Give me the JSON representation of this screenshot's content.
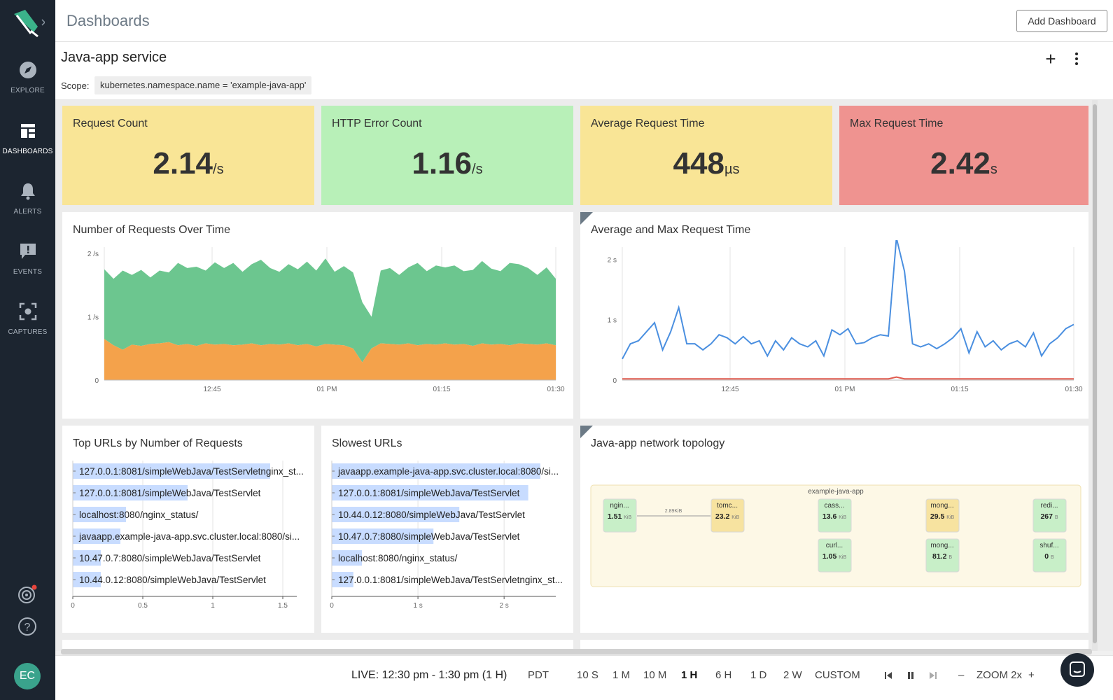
{
  "sidebar": {
    "items": [
      {
        "label": "EXPLORE",
        "icon": "compass-icon"
      },
      {
        "label": "DASHBOARDS",
        "icon": "dashboard-icon"
      },
      {
        "label": "ALERTS",
        "icon": "bell-icon"
      },
      {
        "label": "EVENTS",
        "icon": "speech-bubble-icon"
      },
      {
        "label": "CAPTURES",
        "icon": "capture-icon"
      }
    ],
    "avatar_initials": "EC"
  },
  "header": {
    "title": "Dashboards",
    "add_button": "Add Dashboard"
  },
  "dashboard": {
    "title": "Java-app service",
    "scope_label": "Scope:",
    "scope_value": "kubernetes.namespace.name = 'example-java-app'"
  },
  "kpis": [
    {
      "title": "Request Count",
      "value": "2.14",
      "unit": "/s",
      "color": "#f9e596"
    },
    {
      "title": "HTTP Error Count",
      "value": "1.16",
      "unit": "/s",
      "color": "#b8f0b8"
    },
    {
      "title": "Average Request Time",
      "value": "448",
      "unit": "µs",
      "color": "#f9e596"
    },
    {
      "title": "Max Request Time",
      "value": "2.42",
      "unit": "s",
      "color": "#ef9390"
    }
  ],
  "requests_chart": {
    "title": "Number of Requests Over Time",
    "chart_data": {
      "type": "area",
      "x_ticks": [
        "12:45",
        "01 PM",
        "01:15",
        "01:30"
      ],
      "y_ticks": [
        "0",
        "1 /s",
        "2 /s"
      ],
      "ylim": [
        0,
        2.1
      ],
      "series": [
        {
          "color": "#f4a24b",
          "values": [
            0.65,
            0.55,
            0.48,
            0.56,
            0.54,
            0.57,
            0.58,
            0.6,
            0.55,
            0.57,
            0.54,
            0.58,
            0.56,
            0.57,
            0.55,
            0.56,
            0.58,
            0.55,
            0.57,
            0.56,
            0.58,
            0.55,
            0.57,
            0.53,
            0.57,
            0.56,
            0.55,
            0.5,
            0.28,
            0.5,
            0.58,
            0.57,
            0.56,
            0.58,
            0.55,
            0.57,
            0.56,
            0.58,
            0.56,
            0.57,
            0.54,
            0.58,
            0.56,
            0.57,
            0.55,
            0.58,
            0.57,
            0.56,
            0.58,
            0.55
          ]
        },
        {
          "color": "#6cc68f",
          "values": [
            1.1,
            1.05,
            1.25,
            1.1,
            1.2,
            1.05,
            1.15,
            1.1,
            1.3,
            1.2,
            1.25,
            1.15,
            1.3,
            1.2,
            1.3,
            1.15,
            1.25,
            1.35,
            1.2,
            1.15,
            1.25,
            1.2,
            1.3,
            1.2,
            1.35,
            1.15,
            1.25,
            1.2,
            0.95,
            0.5,
            1.15,
            1.2,
            1.1,
            1.2,
            1.3,
            1.15,
            1.25,
            1.2,
            1.25,
            1.15,
            1.2,
            1.3,
            1.2,
            1.15,
            1.3,
            1.25,
            1.2,
            1.1,
            1.2,
            1.05
          ]
        }
      ]
    }
  },
  "time_chart": {
    "title": "Average and Max Request Time",
    "chart_data": {
      "type": "line",
      "x_ticks": [
        "12:45",
        "01 PM",
        "01:15",
        "01:30"
      ],
      "y_ticks": [
        "0",
        "1 s",
        "2 s"
      ],
      "ylim": [
        0,
        2.2
      ],
      "series": [
        {
          "color": "#4a8fe0",
          "values": [
            0.35,
            0.6,
            0.65,
            0.8,
            0.95,
            0.5,
            0.8,
            1.2,
            0.6,
            0.6,
            0.5,
            0.6,
            0.75,
            0.7,
            0.6,
            0.72,
            0.6,
            0.65,
            0.4,
            0.65,
            0.5,
            0.7,
            0.6,
            0.55,
            0.65,
            0.4,
            0.83,
            0.75,
            0.85,
            0.6,
            0.62,
            0.7,
            0.75,
            0.73,
            2.35,
            1.8,
            0.6,
            0.55,
            0.6,
            0.52,
            0.6,
            0.7,
            0.85,
            0.45,
            0.8,
            0.55,
            0.65,
            0.5,
            0.6,
            0.65,
            0.55,
            0.78,
            0.4,
            0.6,
            0.7,
            0.85,
            0.92
          ]
        },
        {
          "color": "#e05a4e",
          "values": [
            0.02,
            0.02,
            0.02,
            0.02,
            0.02,
            0.02,
            0.02,
            0.02,
            0.02,
            0.02,
            0.02,
            0.02,
            0.02,
            0.02,
            0.02,
            0.02,
            0.02,
            0.02,
            0.02,
            0.02,
            0.02,
            0.02,
            0.02,
            0.02,
            0.02,
            0.02,
            0.02,
            0.02,
            0.02,
            0.02,
            0.02,
            0.02,
            0.02,
            0.02,
            0.05,
            0.02,
            0.02,
            0.02,
            0.02,
            0.02,
            0.02,
            0.02,
            0.02,
            0.02,
            0.02,
            0.02,
            0.02,
            0.02,
            0.02,
            0.02,
            0.02,
            0.02,
            0.02,
            0.02,
            0.02,
            0.02,
            0.02
          ]
        }
      ]
    }
  },
  "top_urls": {
    "title": "Top URLs by Number of Requests",
    "chart_data": {
      "type": "bar",
      "x_ticks": [
        "0",
        "0.5",
        "1",
        "1.5"
      ],
      "xlim": [
        0,
        1.6
      ],
      "categories": [
        "127.0.0.1:8081/simpleWebJava/TestServletnginx_st...",
        "127.0.0.1:8081/simpleWebJava/TestServlet",
        "localhost:8080/nginx_status/",
        "javaapp.example-java-app.svc.cluster.local:8080/si...",
        "10.47.0.7:8080/simpleWebJava/TestServlet",
        "10.44.0.12:8080/simpleWebJava/TestServlet"
      ],
      "values": [
        1.41,
        0.82,
        0.38,
        0.34,
        0.2,
        0.2
      ]
    }
  },
  "slowest_urls": {
    "title": "Slowest URLs",
    "chart_data": {
      "type": "bar",
      "x_ticks": [
        "0",
        "1 s",
        "2 s"
      ],
      "xlim": [
        0,
        2.6
      ],
      "categories": [
        "javaapp.example-java-app.svc.cluster.local:8080/si...",
        "127.0.0.1:8081/simpleWebJava/TestServlet",
        "10.44.0.12:8080/simpleWebJava/TestServlet",
        "10.47.0.7:8080/simpleWebJava/TestServlet",
        "localhost:8080/nginx_status/",
        "127.0.0.1:8081/simpleWebJava/TestServletnginx_st..."
      ],
      "values": [
        2.42,
        2.28,
        1.48,
        1.18,
        0.35,
        0.25
      ]
    }
  },
  "topology": {
    "title": "Java-app network topology",
    "group_label": "example-java-app",
    "link_label": "2.89KiB",
    "nodes": [
      {
        "name": "ngin...",
        "value": "1.51",
        "unit": "KiB",
        "color": "#c8efc8"
      },
      {
        "name": "tomc...",
        "value": "23.2",
        "unit": "KiB",
        "color": "#f7e3a0"
      },
      {
        "name": "cass...",
        "value": "13.6",
        "unit": "KiB",
        "color": "#c8efc8"
      },
      {
        "name": "curl...",
        "value": "1.05",
        "unit": "KiB",
        "color": "#c8efc8"
      },
      {
        "name": "mong...",
        "value": "29.5",
        "unit": "KiB",
        "color": "#f7e3a0"
      },
      {
        "name": "mong...",
        "value": "81.2",
        "unit": "B",
        "color": "#c8efc8"
      },
      {
        "name": "redi...",
        "value": "267",
        "unit": "B",
        "color": "#c8efc8"
      },
      {
        "name": "shuf...",
        "value": "0",
        "unit": "B",
        "color": "#c8efc8"
      }
    ]
  },
  "bottombar": {
    "live": "LIVE: 12:30 pm - 1:30 pm (1 H)",
    "tz": "PDT",
    "ranges": [
      "10 S",
      "1 M",
      "10 M",
      "1 H",
      "6 H",
      "1 D",
      "2 W",
      "CUSTOM"
    ],
    "active_range": "1 H",
    "zoom_label": "ZOOM 2x",
    "minus": "–",
    "plus": "+"
  },
  "dash_plus": "+"
}
